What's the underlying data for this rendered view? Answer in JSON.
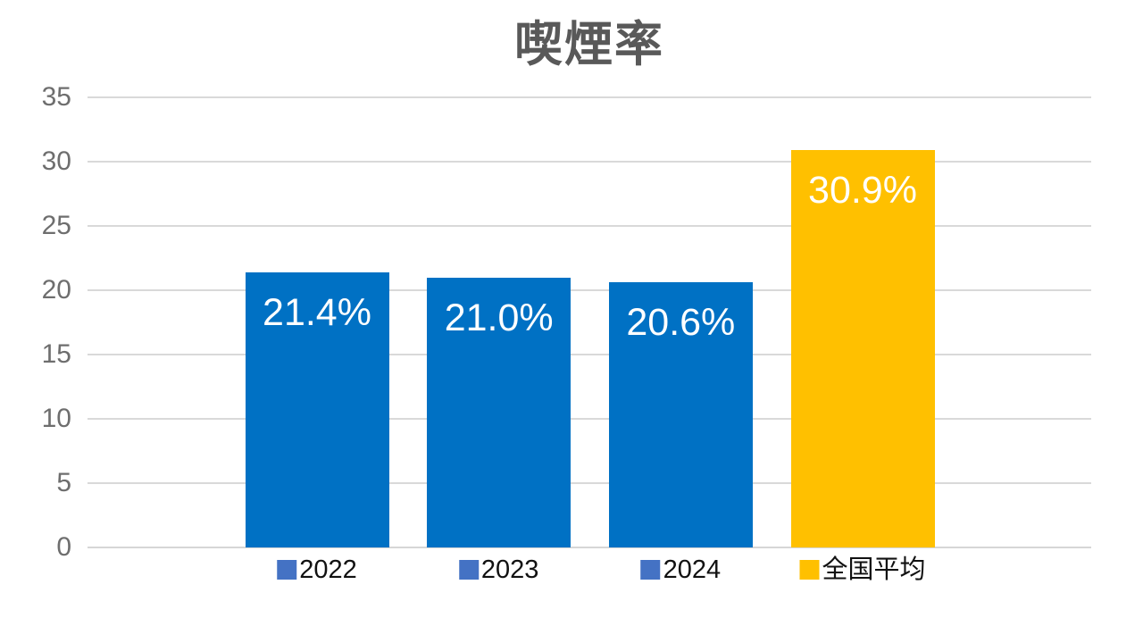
{
  "title": "喫煙率",
  "colors": {
    "background": "#ffffff",
    "bar_blue": "#0071C4",
    "bar_yellow": "#FFC000",
    "legend_marker_blue": "#4472C4",
    "legend_marker_yellow": "#FFC000",
    "gridline": "#d9d9d9",
    "axis_tick_text": "#6e6e6e",
    "title_text": "#595959",
    "category_text": "#111111",
    "value_label_text": "#ffffff"
  },
  "chart_data": {
    "type": "bar",
    "title": "喫煙率",
    "categories": [
      "2022",
      "2023",
      "2024",
      "全国平均"
    ],
    "values": [
      21.4,
      21.0,
      20.6,
      30.9
    ],
    "value_labels": [
      "21.4%",
      "21.0%",
      "20.6%",
      "30.9%"
    ],
    "bar_colors": [
      "#0071C4",
      "#0071C4",
      "#0071C4",
      "#FFC000"
    ],
    "marker_colors": [
      "#4472C4",
      "#4472C4",
      "#4472C4",
      "#FFC000"
    ],
    "xlabel": "",
    "ylabel": "",
    "ylim": [
      0,
      35
    ],
    "yticks": [
      0,
      5,
      10,
      15,
      20,
      25,
      30,
      35
    ],
    "grid": true,
    "legend_position": "inline-with-category-labels"
  }
}
